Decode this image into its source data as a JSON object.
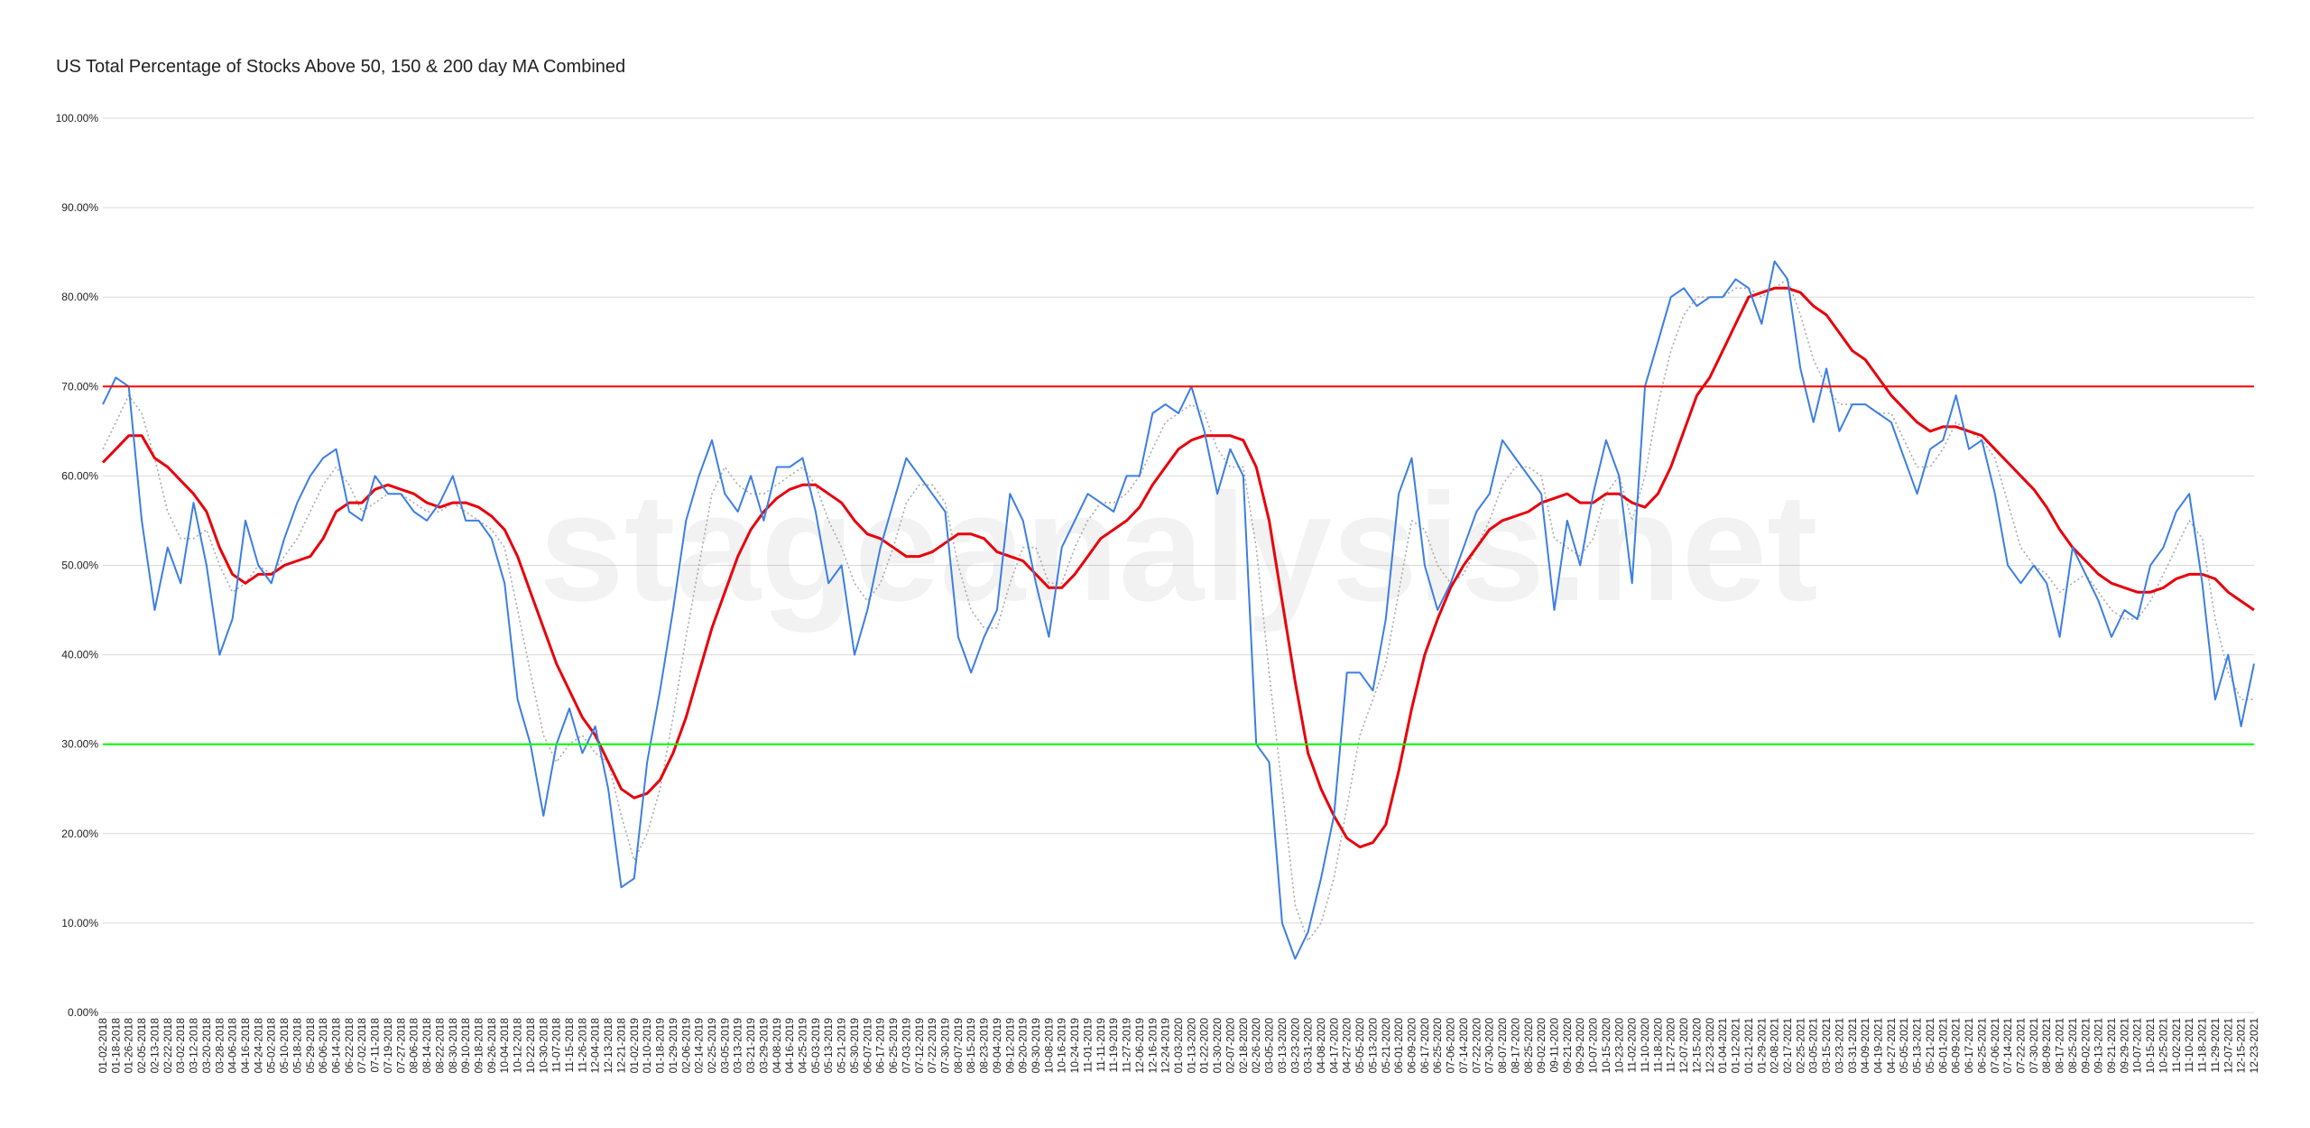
{
  "chart_data": {
    "type": "line",
    "title": "US Total Percentage of Stocks Above 50, 150 & 200 day MA Combined",
    "watermark": "stageanalysis.net",
    "categories": [
      "01-02-2018",
      "01-18-2018",
      "01-26-2018",
      "02-05-2018",
      "02-13-2018",
      "02-22-2018",
      "03-02-2018",
      "03-12-2018",
      "03-20-2018",
      "03-28-2018",
      "04-06-2018",
      "04-16-2018",
      "04-24-2018",
      "05-02-2018",
      "05-10-2018",
      "05-18-2018",
      "05-29-2018",
      "06-06-2018",
      "06-14-2018",
      "06-22-2018",
      "07-02-2018",
      "07-11-2018",
      "07-19-2018",
      "07-27-2018",
      "08-06-2018",
      "08-14-2018",
      "08-22-2018",
      "08-30-2018",
      "09-10-2018",
      "09-18-2018",
      "09-26-2018",
      "10-04-2018",
      "10-12-2018",
      "10-22-2018",
      "10-30-2018",
      "11-07-2018",
      "11-15-2018",
      "11-26-2018",
      "12-04-2018",
      "12-13-2018",
      "12-21-2018",
      "01-02-2019",
      "01-10-2019",
      "01-18-2019",
      "01-29-2019",
      "02-06-2019",
      "02-14-2019",
      "02-25-2019",
      "03-05-2019",
      "03-13-2019",
      "03-21-2019",
      "03-29-2019",
      "04-08-2019",
      "04-16-2019",
      "04-25-2019",
      "05-03-2019",
      "05-13-2019",
      "05-21-2019",
      "05-30-2019",
      "06-07-2019",
      "06-17-2019",
      "06-25-2019",
      "07-03-2019",
      "07-12-2019",
      "07-22-2019",
      "07-30-2019",
      "08-07-2019",
      "08-15-2019",
      "08-23-2019",
      "09-04-2019",
      "09-12-2019",
      "09-20-2019",
      "09-30-2019",
      "10-08-2019",
      "10-16-2019",
      "10-24-2019",
      "11-01-2019",
      "11-11-2019",
      "11-19-2019",
      "11-27-2019",
      "12-06-2019",
      "12-16-2019",
      "12-24-2019",
      "01-03-2020",
      "01-13-2020",
      "01-22-2020",
      "01-30-2020",
      "02-07-2020",
      "02-18-2020",
      "02-26-2020",
      "03-05-2020",
      "03-13-2020",
      "03-23-2020",
      "03-31-2020",
      "04-08-2020",
      "04-17-2020",
      "04-27-2020",
      "05-05-2020",
      "05-13-2020",
      "05-21-2020",
      "06-01-2020",
      "06-09-2020",
      "06-17-2020",
      "06-25-2020",
      "07-06-2020",
      "07-14-2020",
      "07-22-2020",
      "07-30-2020",
      "08-07-2020",
      "08-17-2020",
      "08-25-2020",
      "09-02-2020",
      "09-11-2020",
      "09-21-2020",
      "09-29-2020",
      "10-07-2020",
      "10-15-2020",
      "10-23-2020",
      "11-02-2020",
      "11-10-2020",
      "11-18-2020",
      "11-27-2020",
      "12-07-2020",
      "12-15-2020",
      "12-23-2020",
      "01-04-2021",
      "01-12-2021",
      "01-21-2021",
      "01-29-2021",
      "02-08-2021",
      "02-17-2021",
      "02-25-2021",
      "03-05-2021",
      "03-15-2021",
      "03-23-2021",
      "03-31-2021",
      "04-09-2021",
      "04-19-2021",
      "04-27-2021",
      "05-05-2021",
      "05-13-2021",
      "05-21-2021",
      "06-01-2021",
      "06-09-2021",
      "06-17-2021",
      "06-25-2021",
      "07-06-2021",
      "07-14-2021",
      "07-22-2021",
      "07-30-2021",
      "08-09-2021",
      "08-17-2021",
      "08-25-2021",
      "09-02-2021",
      "09-13-2021",
      "09-21-2021",
      "09-29-2021",
      "10-07-2021",
      "10-15-2021",
      "10-25-2021",
      "11-02-2021",
      "11-10-2021",
      "11-18-2021",
      "11-29-2021",
      "12-07-2021",
      "12-15-2021",
      "12-23-2021"
    ],
    "series": [
      {
        "color": "#3c7ee3",
        "style": "solid",
        "width": 2,
        "values": [
          68,
          71,
          70,
          55,
          45,
          52,
          48,
          57,
          50,
          40,
          44,
          55,
          50,
          48,
          53,
          57,
          60,
          62,
          63,
          56,
          55,
          60,
          58,
          58,
          56,
          55,
          57,
          60,
          55,
          55,
          53,
          48,
          35,
          30,
          22,
          30,
          34,
          29,
          32,
          25,
          14,
          15,
          28,
          36,
          45,
          55,
          60,
          64,
          58,
          56,
          60,
          55,
          61,
          61,
          62,
          56,
          48,
          50,
          40,
          45,
          52,
          57,
          62,
          60,
          58,
          56,
          42,
          38,
          42,
          45,
          58,
          55,
          48,
          42,
          52,
          55,
          58,
          57,
          56,
          60,
          60,
          67,
          68,
          67,
          70,
          65,
          58,
          63,
          60,
          30,
          28,
          10,
          6,
          9,
          15,
          22,
          38,
          38,
          36,
          44,
          58,
          62,
          50,
          45,
          48,
          52,
          56,
          58,
          64,
          62,
          60,
          58,
          45,
          55,
          50,
          58,
          64,
          60,
          48,
          70,
          75,
          80,
          81,
          79,
          80,
          80,
          82,
          81,
          77,
          84,
          82,
          72,
          66,
          72,
          65,
          68,
          68,
          67,
          66,
          62,
          58,
          63,
          64,
          69,
          63,
          64,
          58,
          50,
          48,
          50,
          48,
          42,
          52,
          49,
          46,
          42,
          45,
          44,
          50,
          52,
          56,
          58,
          48,
          35,
          40,
          32,
          39
        ]
      },
      {
        "color": "#aaaaaa",
        "style": "dotted",
        "width": 1.6,
        "values": [
          63,
          66,
          69,
          67,
          62,
          56,
          53,
          53,
          54,
          50,
          47,
          48,
          50,
          49,
          51,
          53,
          56,
          59,
          61,
          59,
          56,
          57,
          58,
          58,
          57,
          56,
          56,
          57,
          56,
          55,
          54,
          52,
          45,
          38,
          31,
          28,
          30,
          31,
          29,
          28,
          22,
          17,
          20,
          25,
          33,
          42,
          50,
          58,
          61,
          59,
          58,
          58,
          59,
          60,
          61,
          59,
          55,
          52,
          48,
          46,
          48,
          52,
          57,
          59,
          59,
          57,
          50,
          45,
          43,
          43,
          48,
          52,
          52,
          48,
          48,
          52,
          55,
          57,
          57,
          58,
          60,
          63,
          66,
          67,
          68,
          67,
          63,
          61,
          61,
          52,
          38,
          25,
          12,
          8,
          10,
          15,
          23,
          31,
          35,
          39,
          47,
          55,
          54,
          50,
          48,
          49,
          52,
          55,
          59,
          61,
          61,
          60,
          53,
          52,
          51,
          53,
          58,
          60,
          55,
          60,
          68,
          74,
          78,
          80,
          80,
          80,
          81,
          81,
          80,
          81,
          82,
          78,
          73,
          70,
          68,
          68,
          68,
          67,
          67,
          64,
          61,
          61,
          63,
          66,
          65,
          64,
          62,
          57,
          52,
          50,
          49,
          47,
          48,
          49,
          47,
          45,
          44,
          44,
          46,
          49,
          52,
          55,
          53,
          44,
          38,
          35,
          35
        ]
      },
      {
        "color": "#e8000b",
        "style": "solid",
        "width": 3,
        "values": [
          61.5,
          63,
          64.5,
          64.5,
          62,
          61,
          59.5,
          58,
          56,
          52,
          49,
          48,
          49,
          49,
          50,
          50.5,
          51,
          53,
          56,
          57,
          57,
          58.5,
          59,
          58.5,
          58,
          57,
          56.5,
          57,
          57,
          56.5,
          55.5,
          54,
          51,
          47,
          43,
          39,
          36,
          33,
          31,
          28,
          25,
          24,
          24.5,
          26,
          29,
          33,
          38,
          43,
          47,
          51,
          54,
          56,
          57.5,
          58.5,
          59,
          59,
          58,
          57,
          55,
          53.5,
          53,
          52,
          51,
          51,
          51.5,
          52.5,
          53.5,
          53.5,
          53,
          51.5,
          51,
          50.5,
          49,
          47.5,
          47.5,
          49,
          51,
          53,
          54,
          55,
          56.5,
          59,
          61,
          63,
          64,
          64.5,
          64.5,
          64.5,
          64,
          61,
          55,
          46,
          37,
          29,
          25,
          22,
          19.5,
          18.5,
          19,
          21,
          27,
          34,
          40,
          44,
          47.5,
          50,
          52,
          54,
          55,
          55.5,
          56,
          57,
          57.5,
          58,
          57,
          57,
          58,
          58,
          57,
          56.5,
          58,
          61,
          65,
          69,
          71,
          74,
          77,
          80,
          80.5,
          81,
          81,
          80.5,
          79,
          78,
          76,
          74,
          73,
          71,
          69,
          67.5,
          66,
          65,
          65.5,
          65.5,
          65,
          64.5,
          63,
          61.5,
          60,
          58.5,
          56.5,
          54,
          52,
          50.5,
          49,
          48,
          47.5,
          47,
          47,
          47.5,
          48.5,
          49,
          49,
          48.5,
          47,
          46,
          45
        ]
      }
    ],
    "reference_lines": [
      {
        "value": 70,
        "color": "#ff0000"
      },
      {
        "value": 30,
        "color": "#00ff00"
      }
    ],
    "ylim": [
      0,
      100
    ],
    "yticks": [
      {
        "value": 0,
        "label": "0.00%"
      },
      {
        "value": 10,
        "label": "10.00%"
      },
      {
        "value": 20,
        "label": "20.00%"
      },
      {
        "value": 30,
        "label": "30.00%"
      },
      {
        "value": 40,
        "label": "40.00%"
      },
      {
        "value": 50,
        "label": "50.00%"
      },
      {
        "value": 60,
        "label": "60.00%"
      },
      {
        "value": 70,
        "label": "70.00%"
      },
      {
        "value": 80,
        "label": "80.00%"
      },
      {
        "value": 90,
        "label": "90.00%"
      },
      {
        "value": 100,
        "label": "100.00%"
      }
    ],
    "grid": true
  }
}
